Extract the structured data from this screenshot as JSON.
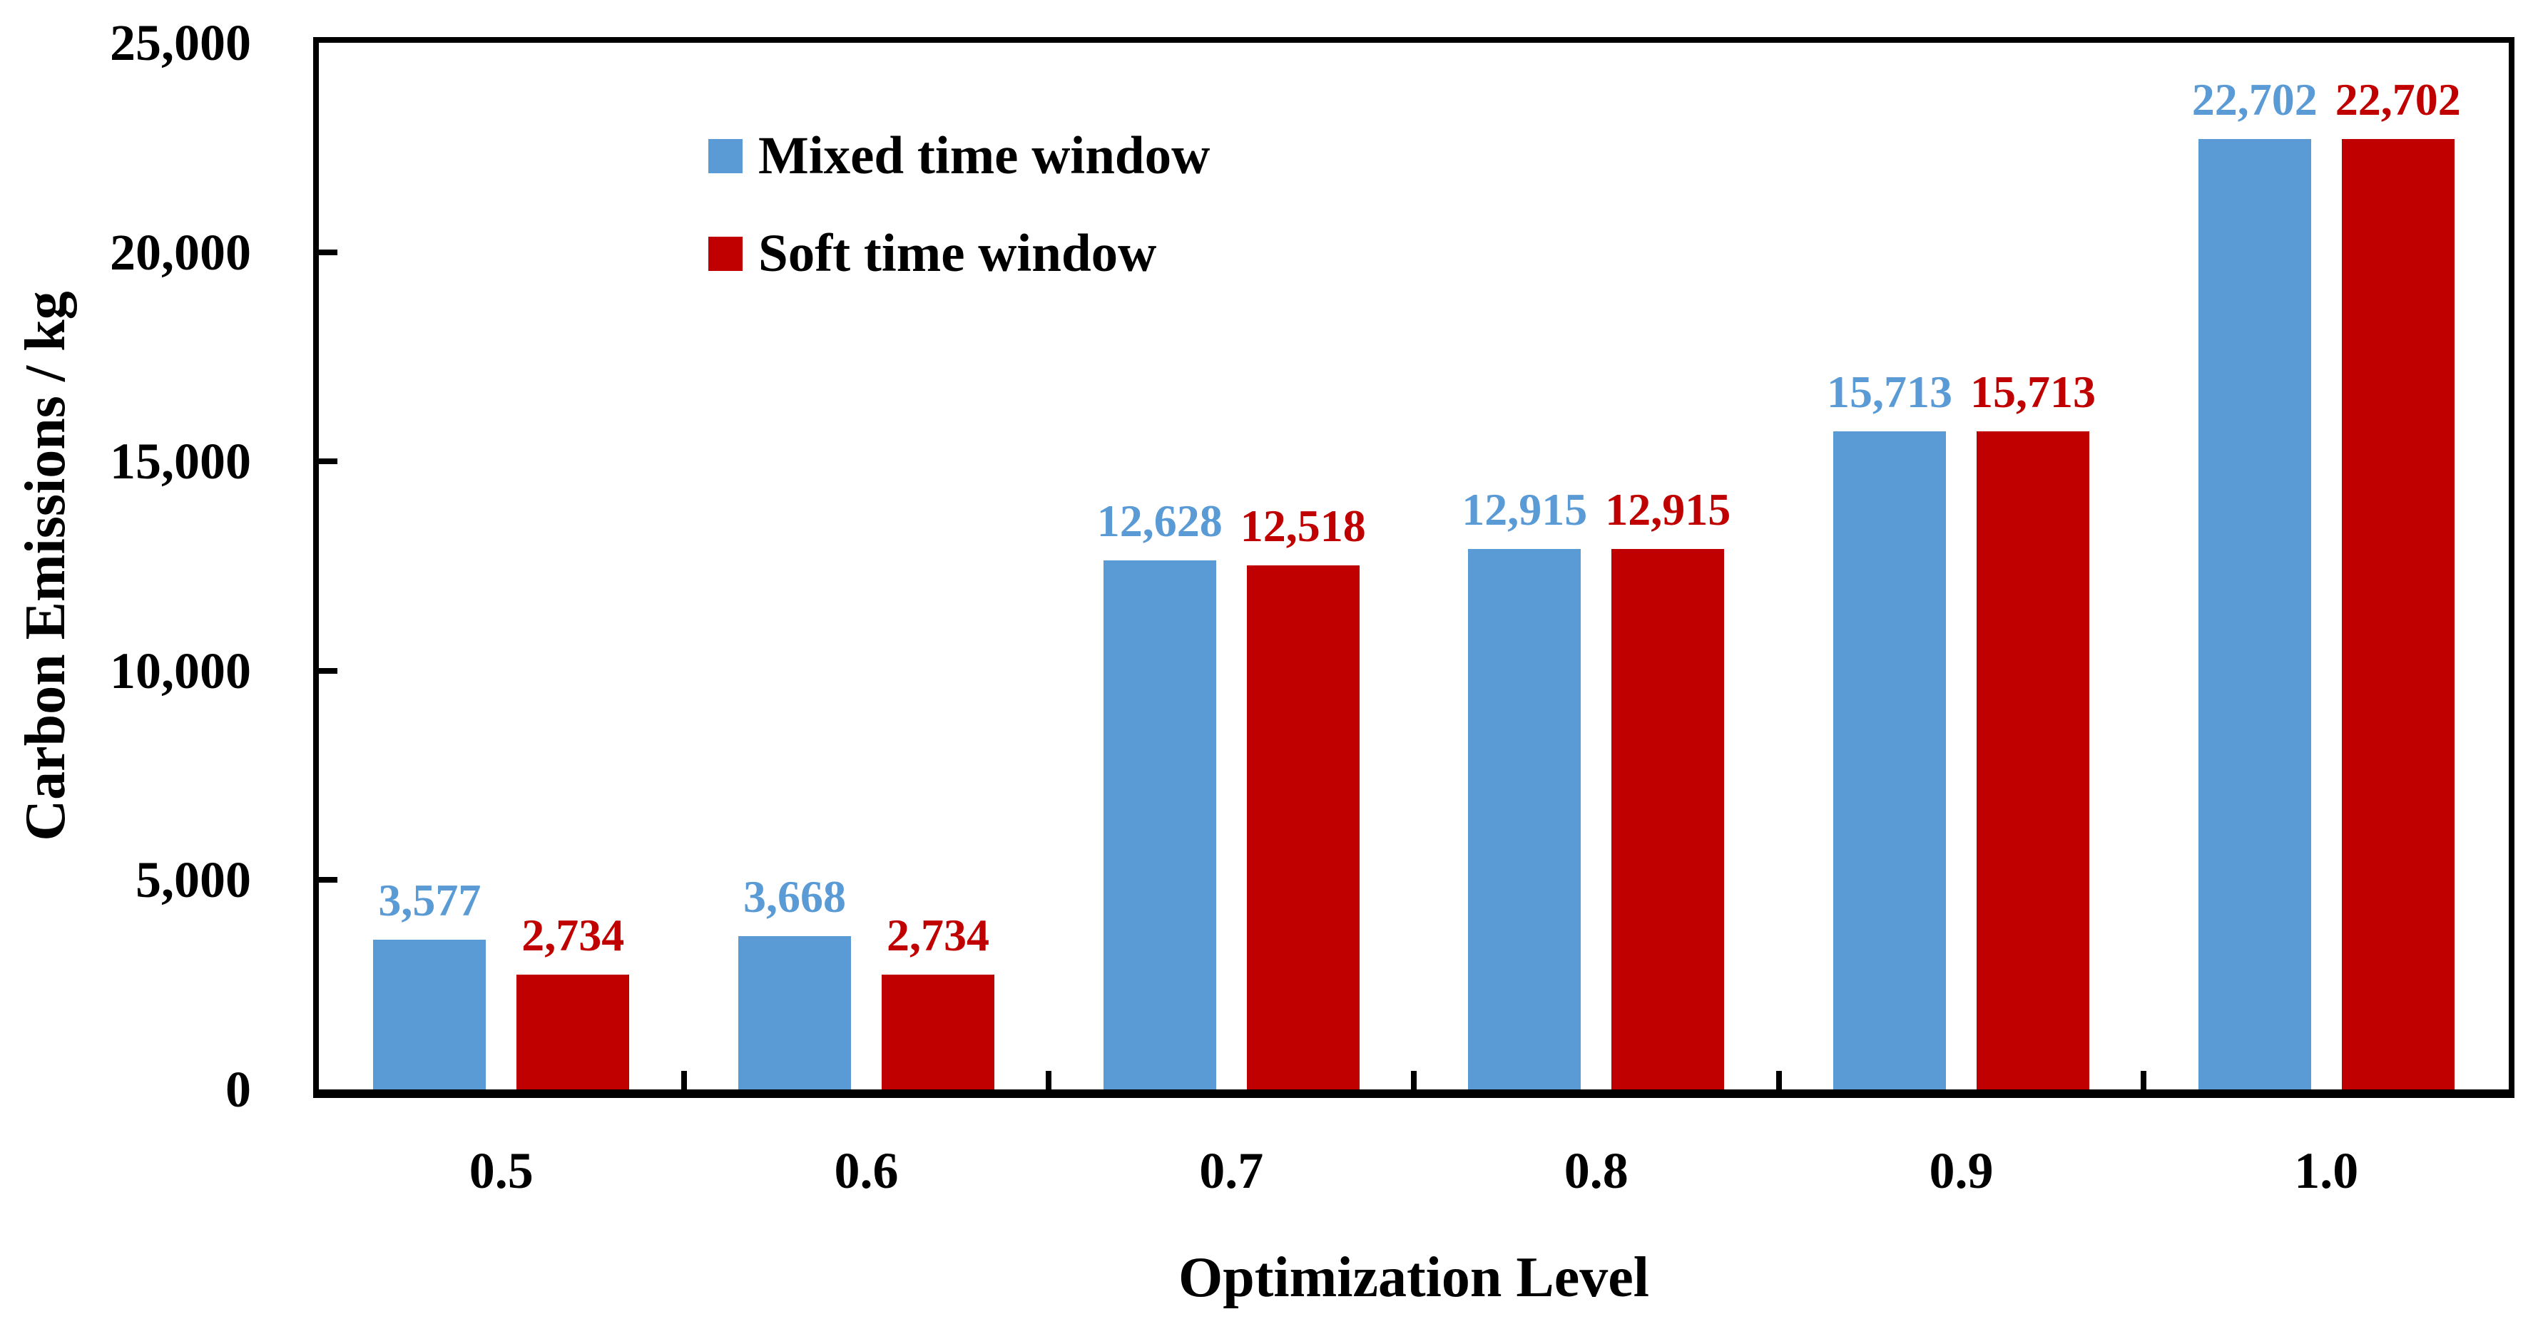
{
  "chart_data": {
    "type": "bar",
    "title": "",
    "xlabel": "Optimization Level",
    "ylabel": "Carbon Emissions / kg",
    "categories": [
      "0.5",
      "0.6",
      "0.7",
      "0.8",
      "0.9",
      "1.0"
    ],
    "series": [
      {
        "name": "Mixed time window",
        "color": "#5B9BD5",
        "values": [
          3577,
          3668,
          12628,
          12915,
          15713,
          22702
        ],
        "labels": [
          "3,577",
          "3,668",
          "12,628",
          "12,915",
          "15,713",
          "22,702"
        ]
      },
      {
        "name": "Soft time window",
        "color": "#C00000",
        "values": [
          2734,
          2734,
          12518,
          12915,
          15713,
          22702
        ],
        "labels": [
          "2,734",
          "2,734",
          "12,518",
          "12,915",
          "15,713",
          "22,702"
        ]
      }
    ],
    "ylim": [
      0,
      25000
    ],
    "ytick_values": [
      0,
      5000,
      10000,
      15000,
      20000,
      25000
    ],
    "ytick_labels": [
      "0",
      "5,000",
      "10,000",
      "15,000",
      "20,000",
      "25,000"
    ],
    "grid": false,
    "legend_position": "top-left-inside",
    "bar_value_labels_shown": true,
    "axis_color": "#000000",
    "background_color": "#FFFFFF"
  }
}
